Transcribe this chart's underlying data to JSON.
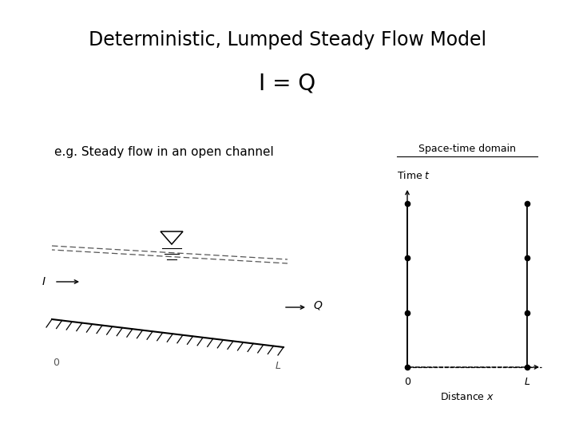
{
  "title": "Deterministic, Lumped Steady Flow Model",
  "subtitle": "I = Q",
  "eg_text": "e.g. Steady flow in an open channel",
  "bg_color": "#ffffff",
  "text_color": "#000000",
  "title_fontsize": 17,
  "subtitle_fontsize": 20,
  "eg_fontsize": 11,
  "st_title": "Space-time domain",
  "st_time_label": "Time $t$",
  "st_dist_label": "Distance $x$"
}
